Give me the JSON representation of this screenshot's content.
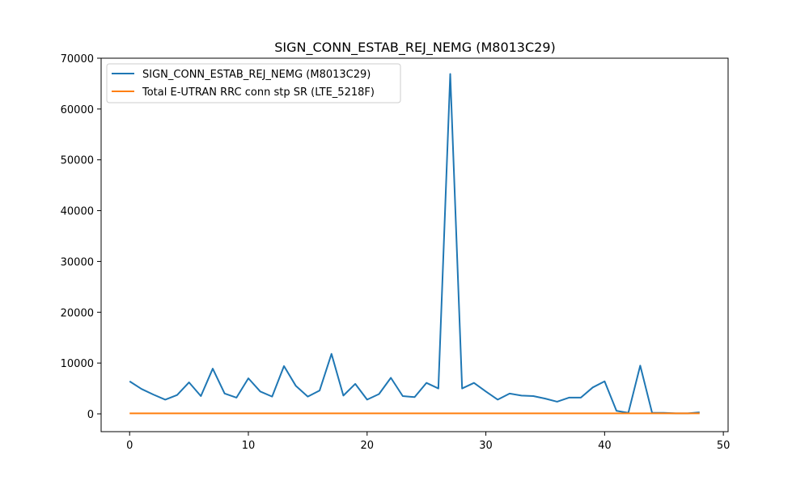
{
  "chart_data": {
    "type": "line",
    "title": "SIGN_CONN_ESTAB_REJ_NEMG (M8013C29)",
    "xlabel": "",
    "ylabel": "",
    "xlim": [
      -2.4,
      50.4
    ],
    "ylim": [
      -3500,
      70000
    ],
    "xticks": [
      0,
      10,
      20,
      30,
      40,
      50
    ],
    "yticks": [
      0,
      10000,
      20000,
      30000,
      40000,
      50000,
      60000,
      70000
    ],
    "grid": false,
    "legend_position": "top-left",
    "series": [
      {
        "name": "SIGN_CONN_ESTAB_REJ_NEMG (M8013C29)",
        "color": "#1f77b4",
        "x": [
          0,
          1,
          2,
          3,
          4,
          5,
          6,
          7,
          8,
          9,
          10,
          11,
          12,
          13,
          14,
          15,
          16,
          17,
          18,
          19,
          20,
          21,
          22,
          23,
          24,
          25,
          26,
          27,
          28,
          29,
          30,
          31,
          32,
          33,
          34,
          35,
          36,
          37,
          38,
          39,
          40,
          41,
          42,
          43,
          44,
          45,
          46,
          47,
          48
        ],
        "y": [
          6400,
          4900,
          3800,
          2800,
          3700,
          6200,
          3500,
          8900,
          4000,
          3200,
          7000,
          4400,
          3400,
          9400,
          5500,
          3400,
          4600,
          11800,
          3600,
          5900,
          2800,
          3900,
          7100,
          3500,
          3300,
          6100,
          5000,
          66900,
          5000,
          6100,
          4400,
          2800,
          4000,
          3600,
          3500,
          3000,
          2400,
          3200,
          3200,
          5200,
          6400,
          600,
          200,
          9500,
          200,
          200,
          100,
          100,
          300
        ]
      },
      {
        "name": "Total E-UTRAN RRC conn stp SR (LTE_5218F)",
        "color": "#ff7f0e",
        "x": [
          0,
          1,
          2,
          3,
          4,
          5,
          6,
          7,
          8,
          9,
          10,
          11,
          12,
          13,
          14,
          15,
          16,
          17,
          18,
          19,
          20,
          21,
          22,
          23,
          24,
          25,
          26,
          27,
          28,
          29,
          30,
          31,
          32,
          33,
          34,
          35,
          36,
          37,
          38,
          39,
          40,
          41,
          42,
          43,
          44,
          45,
          46,
          47,
          48
        ],
        "y": [
          100,
          100,
          100,
          100,
          100,
          100,
          100,
          100,
          100,
          100,
          100,
          100,
          100,
          100,
          100,
          100,
          100,
          100,
          100,
          100,
          100,
          100,
          100,
          100,
          100,
          100,
          100,
          100,
          100,
          100,
          100,
          100,
          100,
          100,
          100,
          100,
          100,
          100,
          100,
          100,
          100,
          100,
          100,
          100,
          100,
          100,
          100,
          100,
          100
        ]
      }
    ]
  }
}
